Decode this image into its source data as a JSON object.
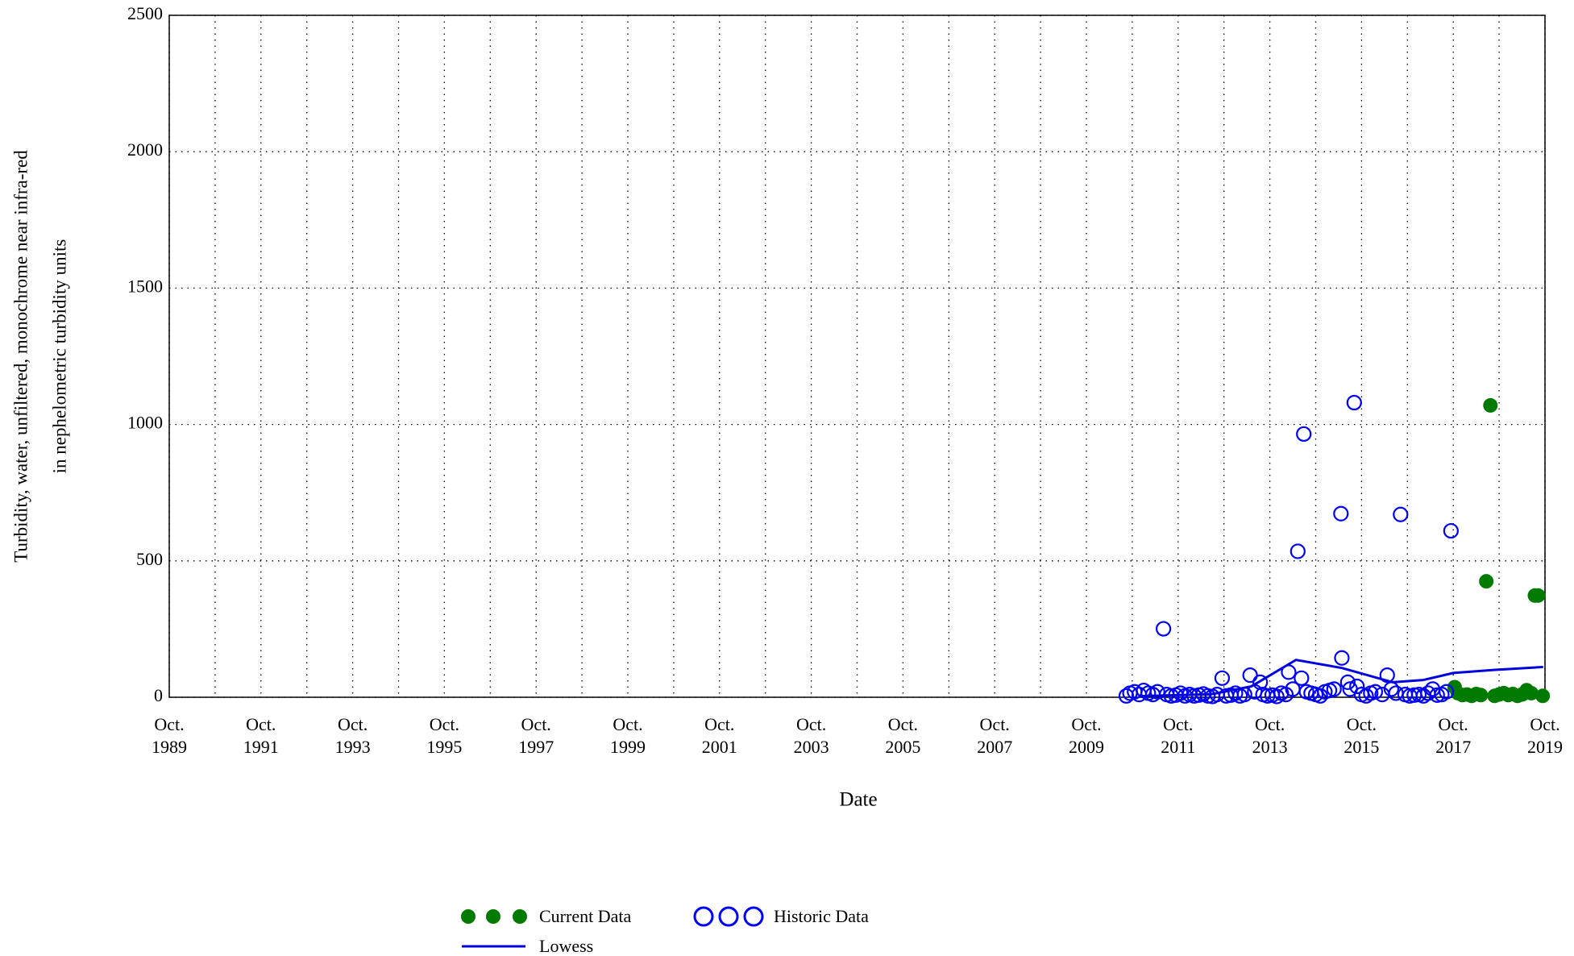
{
  "chart_data": {
    "type": "scatter",
    "ylabel": [
      "Turbidity, water, unfiltered, monochrome near infra-red",
      "in nephelometric turbidity units"
    ],
    "xlabel": "Date",
    "xlim": [
      1989.75,
      2019.75
    ],
    "ylim": [
      0,
      2500
    ],
    "yticks": [
      0,
      500,
      1000,
      1500,
      2000,
      2500
    ],
    "xticks": [
      {
        "value": 1989.75,
        "label": "Oct.\n1989"
      },
      {
        "value": 1991.75,
        "label": "Oct.\n1991"
      },
      {
        "value": 1993.75,
        "label": "Oct.\n1993"
      },
      {
        "value": 1995.75,
        "label": "Oct.\n1995"
      },
      {
        "value": 1997.75,
        "label": "Oct.\n1997"
      },
      {
        "value": 1999.75,
        "label": "Oct.\n1999"
      },
      {
        "value": 2001.75,
        "label": "Oct.\n2001"
      },
      {
        "value": 2003.75,
        "label": "Oct.\n2003"
      },
      {
        "value": 2005.75,
        "label": "Oct.\n2005"
      },
      {
        "value": 2007.75,
        "label": "Oct.\n2007"
      },
      {
        "value": 2009.75,
        "label": "Oct.\n2009"
      },
      {
        "value": 2011.75,
        "label": "Oct.\n2011"
      },
      {
        "value": 2013.75,
        "label": "Oct.\n2013"
      },
      {
        "value": 2015.75,
        "label": "Oct.\n2015"
      },
      {
        "value": 2017.75,
        "label": "Oct.\n2017"
      },
      {
        "value": 2019.75,
        "label": "Oct.\n2019"
      }
    ],
    "xminor_ticks": [
      1990.75,
      1992.75,
      1994.75,
      1996.75,
      1998.75,
      2000.75,
      2002.75,
      2004.75,
      2006.75,
      2008.75,
      2010.75,
      2012.75,
      2014.75,
      2016.75,
      2018.75
    ],
    "grid": true,
    "series": [
      {
        "name": "Current Data",
        "color": "#007a00",
        "marker": "filled",
        "x": [
          2017.78,
          2017.85,
          2017.95,
          2018.05,
          2018.15,
          2018.25,
          2018.35,
          2018.47,
          2018.56,
          2018.65,
          2018.75,
          2018.85,
          2018.95,
          2019.05,
          2019.15,
          2019.25,
          2019.35,
          2019.45,
          2019.53,
          2019.6,
          2019.7
        ],
        "values": [
          37,
          15,
          8,
          10,
          5,
          12,
          8,
          425,
          1070,
          5,
          10,
          15,
          8,
          12,
          5,
          10,
          26,
          15,
          373,
          373,
          5
        ]
      },
      {
        "name": "Historic Data",
        "color": "#0000ff",
        "marker": "open",
        "x": [
          2010.62,
          2010.7,
          2010.8,
          2010.9,
          2011.0,
          2011.1,
          2011.2,
          2011.3,
          2011.43,
          2011.5,
          2011.6,
          2011.7,
          2011.8,
          2011.9,
          2012.0,
          2012.1,
          2012.2,
          2012.3,
          2012.4,
          2012.5,
          2012.6,
          2012.71,
          2012.8,
          2012.9,
          2013.0,
          2013.1,
          2013.2,
          2013.32,
          2013.42,
          2013.54,
          2013.6,
          2013.7,
          2013.8,
          2013.9,
          2014.0,
          2014.1,
          2014.16,
          2014.25,
          2014.36,
          2014.44,
          2014.49,
          2014.55,
          2014.65,
          2014.75,
          2014.85,
          2014.95,
          2015.05,
          2015.15,
          2015.3,
          2015.32,
          2015.45,
          2015.5,
          2015.59,
          2015.65,
          2015.75,
          2015.85,
          2015.95,
          2016.05,
          2016.2,
          2016.31,
          2016.4,
          2016.5,
          2016.6,
          2016.7,
          2016.8,
          2016.9,
          2017.0,
          2017.1,
          2017.2,
          2017.3,
          2017.4,
          2017.5,
          2017.6,
          2017.7
        ],
        "values": [
          5,
          15,
          20,
          10,
          25,
          15,
          10,
          20,
          251,
          10,
          5,
          8,
          15,
          5,
          10,
          5,
          8,
          12,
          5,
          3,
          10,
          70,
          5,
          8,
          15,
          5,
          10,
          81,
          20,
          55,
          10,
          5,
          8,
          3,
          15,
          10,
          92,
          30,
          535,
          70,
          965,
          20,
          15,
          10,
          5,
          20,
          25,
          30,
          673,
          144,
          55,
          30,
          1080,
          40,
          10,
          5,
          15,
          20,
          10,
          81,
          30,
          15,
          670,
          10,
          5,
          8,
          10,
          5,
          15,
          30,
          8,
          10,
          20,
          610
        ]
      },
      {
        "name": "Lowess",
        "color": "#0000e0",
        "marker": "line",
        "x": [
          2010.9,
          2012.47,
          2013.35,
          2014.32,
          2015.33,
          2016.43,
          2017.09,
          2017.75,
          2018.63,
          2019.71
        ],
        "values": [
          4,
          11,
          40,
          137,
          107,
          55,
          63,
          89,
          100,
          111
        ]
      }
    ]
  }
}
